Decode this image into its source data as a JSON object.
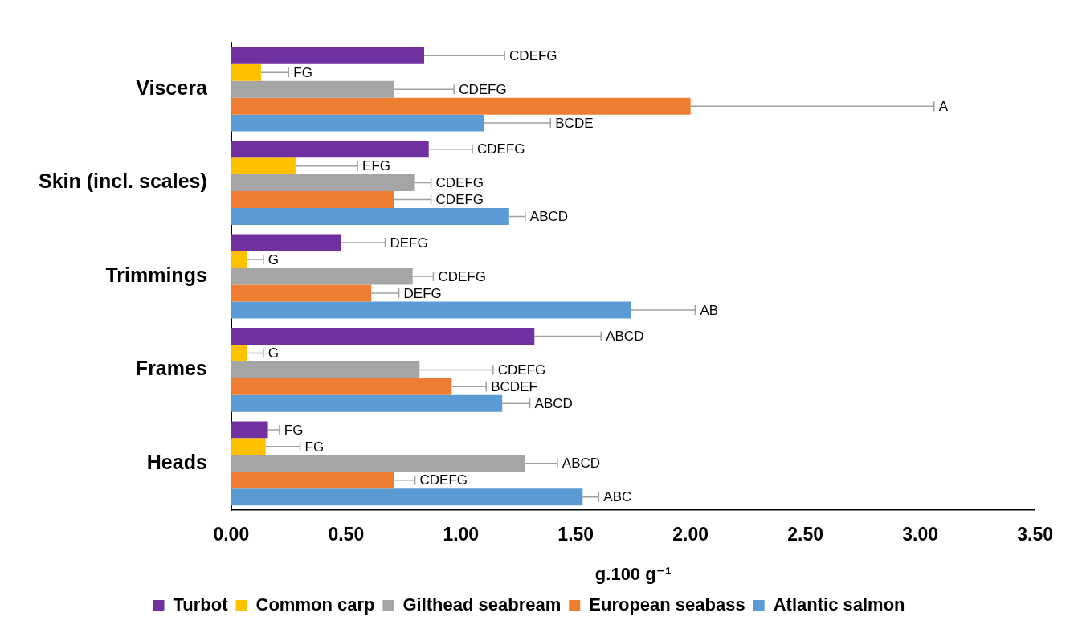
{
  "chart_data": {
    "type": "bar",
    "orientation": "horizontal",
    "xlabel": "g.100 g⁻¹",
    "categories": [
      "Viscera",
      "Skin (incl. scales)",
      "Trimmings",
      "Frames",
      "Heads"
    ],
    "xlim": [
      0,
      3.5
    ],
    "xticks": [
      {
        "value": 0,
        "label": "0.00"
      },
      {
        "value": 0.5,
        "label": "0.50"
      },
      {
        "value": 1,
        "label": "1.00"
      },
      {
        "value": 1.5,
        "label": "1.50"
      },
      {
        "value": 2,
        "label": "2.00"
      },
      {
        "value": 2.5,
        "label": "2.50"
      },
      {
        "value": 3,
        "label": "3.00"
      },
      {
        "value": 3.5,
        "label": "3.50"
      }
    ],
    "grid": false,
    "legend": "bottom",
    "series": [
      {
        "name": "Turbot",
        "color": "#7030a0",
        "values": [
          0.84,
          0.86,
          0.48,
          1.32,
          0.16
        ],
        "errors": [
          0.35,
          0.19,
          0.19,
          0.29,
          0.05
        ]
      },
      {
        "name": "Common carp",
        "color": "#ffc000",
        "values": [
          0.13,
          0.28,
          0.07,
          0.07,
          0.15
        ],
        "errors": [
          0.12,
          0.27,
          0.07,
          0.07,
          0.15
        ]
      },
      {
        "name": "Gilthead seabream",
        "color": "#a5a5a5",
        "values": [
          0.71,
          0.8,
          0.79,
          0.82,
          1.28
        ],
        "errors": [
          0.26,
          0.07,
          0.09,
          0.32,
          0.14
        ]
      },
      {
        "name": "European seabass",
        "color": "#ed7d31",
        "values": [
          2.0,
          0.71,
          0.61,
          0.96,
          0.71
        ],
        "errors": [
          1.06,
          0.16,
          0.12,
          0.15,
          0.09
        ]
      },
      {
        "name": "Atlantic salmon",
        "color": "#5b9bd5",
        "values": [
          1.1,
          1.21,
          1.74,
          1.18,
          1.53
        ],
        "errors": [
          0.29,
          0.07,
          0.28,
          0.12,
          0.07
        ]
      }
    ],
    "annotations": [
      "CDEFG",
      "FG",
      "CDEFG",
      "A",
      "BCDE",
      "CDEFG",
      "EFG",
      "CDEFG",
      "CDEFG",
      "ABCD",
      "DEFG",
      "G",
      "CDEFG",
      "DEFG",
      "AB",
      "ABCD",
      "G",
      "CDEFG",
      "BCDEF",
      "ABCD",
      "FG",
      "FG",
      "ABCD",
      "CDEFG",
      "ABC"
    ]
  }
}
